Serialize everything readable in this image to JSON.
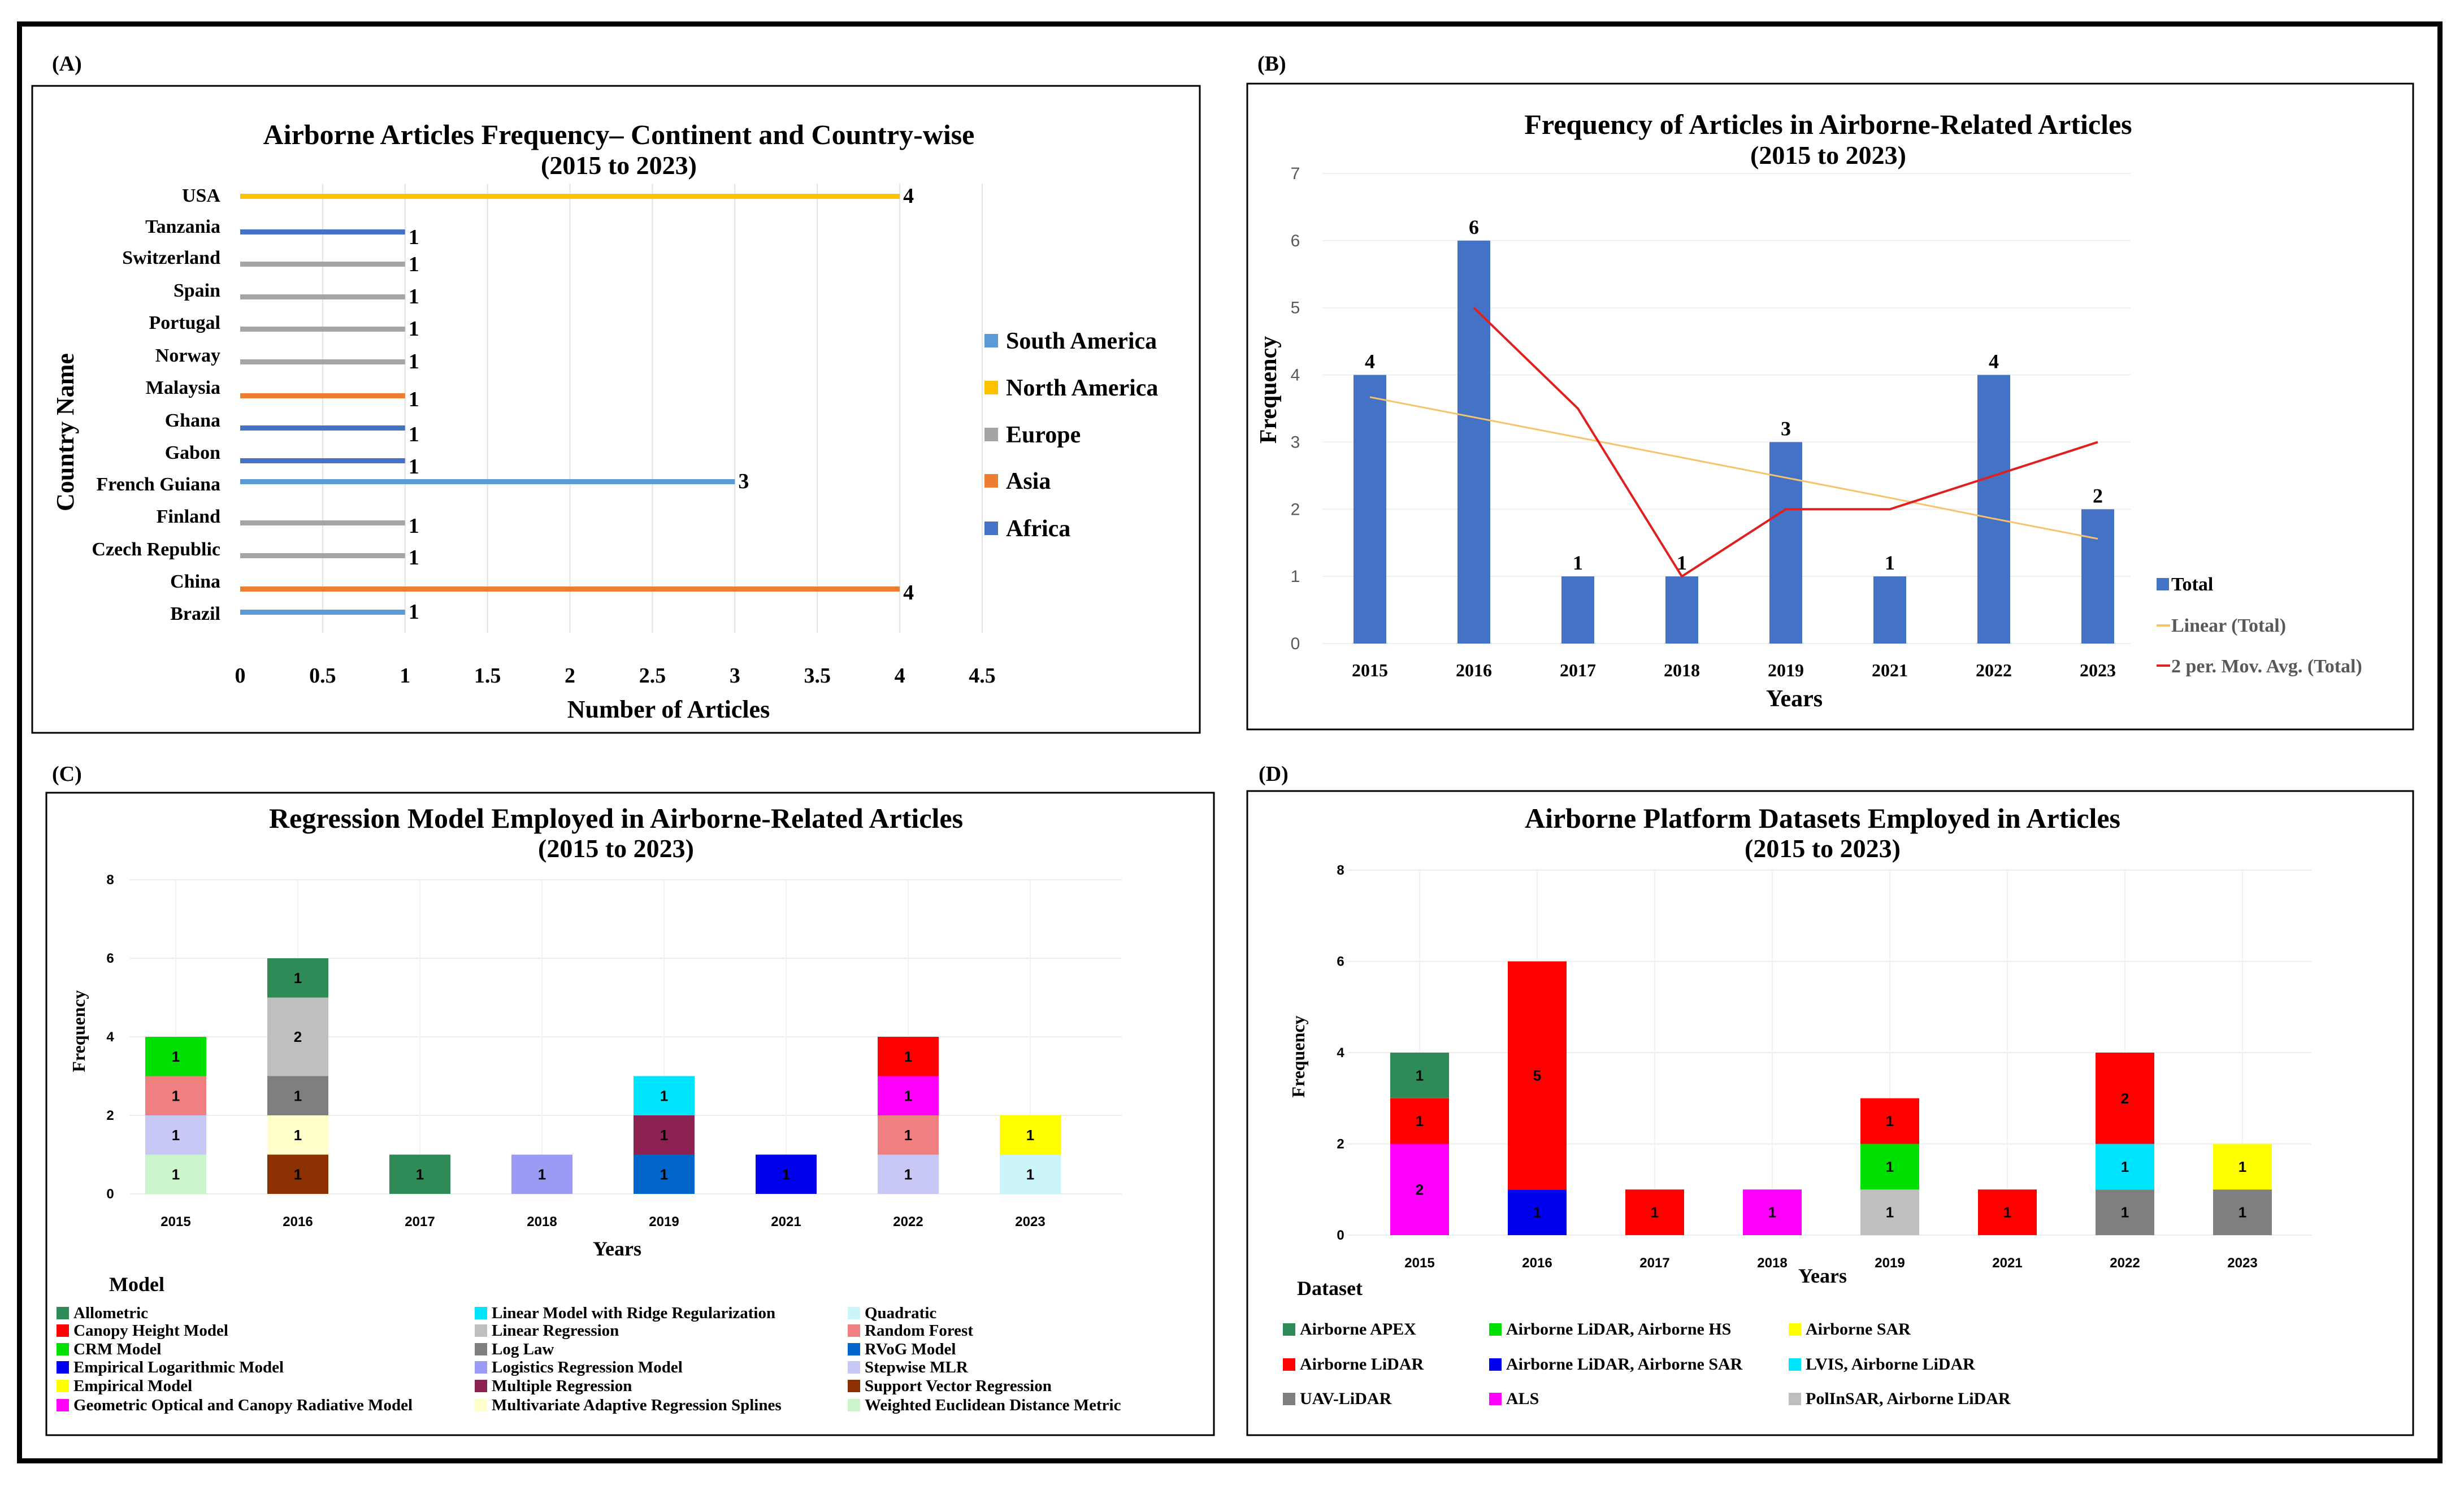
{
  "panels": {
    "A": {
      "label": "(A)",
      "chart_data": {
        "type": "bar",
        "orientation": "horizontal",
        "title": "Airborne Articles Frequency– Continent and  Country-wise",
        "subtitle": "(2015 to 2023)",
        "xlabel": "Number of Articles",
        "ylabel": "Country Name",
        "xlim": [
          0,
          4.5
        ],
        "xticks": [
          "0",
          "0.5",
          "1",
          "1.5",
          "2",
          "2.5",
          "3",
          "3.5",
          "4",
          "4.5"
        ],
        "categories": [
          "USA",
          "Tanzania",
          "Switzerland",
          "Spain",
          "Portugal",
          "Norway",
          "Malaysia",
          "Ghana",
          "Gabon",
          "French Guiana",
          "Finland",
          "Czech Republic",
          "China",
          "Brazil"
        ],
        "values": [
          4,
          1,
          1,
          1,
          1,
          1,
          1,
          1,
          1,
          3,
          1,
          1,
          4,
          1
        ],
        "continent": [
          "North America",
          "Africa",
          "Europe",
          "Europe",
          "Europe",
          "Europe",
          "Asia",
          "Africa",
          "Africa",
          "South America",
          "Europe",
          "Europe",
          "Asia",
          "South America"
        ],
        "legend": [
          {
            "name": "South America",
            "color": "#5b9bd5"
          },
          {
            "name": "North America",
            "color": "#ffc000"
          },
          {
            "name": "Europe",
            "color": "#a5a5a5"
          },
          {
            "name": "Asia",
            "color": "#ed7d31"
          },
          {
            "name": "Africa",
            "color": "#4472c4"
          }
        ],
        "legend_position": "right"
      }
    },
    "B": {
      "label": "(B)",
      "chart_data": {
        "type": "bar",
        "title": "Frequency of Articles in Airborne-Related Articles",
        "subtitle": "(2015 to 2023)",
        "xlabel": "Years",
        "ylabel": "Frequency",
        "ylim": [
          0,
          7
        ],
        "yticks": [
          "0",
          "1",
          "2",
          "3",
          "4",
          "5",
          "6",
          "7"
        ],
        "categories": [
          "2015",
          "2016",
          "2017",
          "2018",
          "2019",
          "2021",
          "2022",
          "2023"
        ],
        "series": [
          {
            "name": "Total",
            "type": "bar",
            "color": "#4472c4",
            "values": [
              4,
              6,
              1,
              1,
              3,
              1,
              4,
              2
            ]
          },
          {
            "name": "Linear (Total)",
            "type": "line",
            "color": "#f5c36b",
            "values": [
              3.67,
              3.37,
              3.07,
              2.77,
              2.47,
              2.17,
              1.86,
              1.56
            ]
          },
          {
            "name": "2 per. Mov. Avg. (Total)",
            "type": "line",
            "color": "#e02020",
            "values": [
              null,
              5,
              3.5,
              1,
              2,
              2,
              2.5,
              3
            ]
          }
        ],
        "data_labels": [
          "4",
          "6",
          "1",
          "1",
          "3",
          "1",
          "4",
          "2"
        ],
        "legend_position": "right"
      }
    },
    "C": {
      "label": "(C)",
      "chart_data": {
        "type": "bar",
        "stacked": true,
        "title": "Regression Model Employed in Airborne-Related Articles",
        "subtitle": "(2015 to 2023)",
        "xlabel": "Years",
        "ylabel": "Frequency",
        "ylim": [
          0,
          8
        ],
        "yticks": [
          "0",
          "2",
          "4",
          "6",
          "8"
        ],
        "categories": [
          "2015",
          "2016",
          "2017",
          "2018",
          "2019",
          "2021",
          "2022",
          "2023"
        ],
        "stacks": [
          [
            {
              "model": "Weighted Euclidean Distance Metric",
              "value": 1
            },
            {
              "model": "Stepwise MLR",
              "value": 1
            },
            {
              "model": "Random Forest",
              "value": 1
            },
            {
              "model": "CRM Model",
              "value": 1
            }
          ],
          [
            {
              "model": "Support Vector Regression",
              "value": 1
            },
            {
              "model": "Multivariate Adaptive Regression Splines",
              "value": 1
            },
            {
              "model": "Log Law",
              "value": 1
            },
            {
              "model": "Linear Regression",
              "value": 2
            },
            {
              "model": "Allometric",
              "value": 1
            }
          ],
          [
            {
              "model": "Allometric",
              "value": 1
            }
          ],
          [
            {
              "model": "Logistics Regression Model",
              "value": 1
            }
          ],
          [
            {
              "model": "RVoG Model",
              "value": 1
            },
            {
              "model": "Multiple Regression",
              "value": 1
            },
            {
              "model": "Linear Model with Ridge Regularization",
              "value": 1
            }
          ],
          [
            {
              "model": "Empirical Logarithmic Model",
              "value": 1
            }
          ],
          [
            {
              "model": "Stepwise MLR",
              "value": 1
            },
            {
              "model": "Random Forest",
              "value": 1
            },
            {
              "model": "Geometric Optical and Canopy Radiative Model",
              "value": 1
            },
            {
              "model": "Canopy Height Model",
              "value": 1
            }
          ],
          [
            {
              "model": "Quadratic",
              "value": 1
            },
            {
              "model": "Empirical Model",
              "value": 1
            }
          ]
        ],
        "legend_title": "Model",
        "legend": [
          {
            "name": "Allometric",
            "color": "#2e8b57"
          },
          {
            "name": "Canopy Height Model",
            "color": "#ff0000"
          },
          {
            "name": "CRM Model",
            "color": "#00e000"
          },
          {
            "name": "Empirical Logarithmic Model",
            "color": "#0000ee"
          },
          {
            "name": "Empirical Model",
            "color": "#ffff00"
          },
          {
            "name": "Geometric Optical and Canopy Radiative Model",
            "color": "#ff00ff"
          },
          {
            "name": "Linear Model with Ridge Regularization",
            "color": "#00e5ff"
          },
          {
            "name": "Linear Regression",
            "color": "#bfbfbf"
          },
          {
            "name": "Log Law",
            "color": "#7f7f7f"
          },
          {
            "name": "Logistics Regression Model",
            "color": "#9b9bf5"
          },
          {
            "name": "Multiple Regression",
            "color": "#8b2252"
          },
          {
            "name": "Multivariate Adaptive Regression Splines",
            "color": "#ffffcc"
          },
          {
            "name": "Quadratic",
            "color": "#ccf5f9"
          },
          {
            "name": "Random Forest",
            "color": "#f08080"
          },
          {
            "name": "RVoG Model",
            "color": "#0066cc"
          },
          {
            "name": "Stepwise MLR",
            "color": "#c8c8f5"
          },
          {
            "name": "Support Vector Regression",
            "color": "#8b3000"
          },
          {
            "name": "Weighted Euclidean Distance Metric",
            "color": "#ccf5cc"
          }
        ],
        "legend_position": "bottom"
      }
    },
    "D": {
      "label": "(D)",
      "chart_data": {
        "type": "bar",
        "stacked": true,
        "title": "Airborne Platform Datasets Employed in Articles",
        "subtitle": "(2015 to 2023)",
        "xlabel": "Years",
        "ylabel": "Frequency",
        "ylim": [
          0,
          8
        ],
        "yticks": [
          "0",
          "2",
          "4",
          "6",
          "8"
        ],
        "categories": [
          "2015",
          "2016",
          "2017",
          "2018",
          "2019",
          "2021",
          "2022",
          "2023"
        ],
        "stacks": [
          [
            {
              "dataset": "ALS",
              "value": 2
            },
            {
              "dataset": "Airborne LiDAR",
              "value": 1
            },
            {
              "dataset": "Airborne APEX",
              "value": 1
            }
          ],
          [
            {
              "dataset": "Airborne LiDAR, Airborne SAR",
              "value": 1
            },
            {
              "dataset": "Airborne LiDAR",
              "value": 5
            }
          ],
          [
            {
              "dataset": "Airborne LiDAR",
              "value": 1
            }
          ],
          [
            {
              "dataset": "ALS",
              "value": 1
            }
          ],
          [
            {
              "dataset": "PolInSAR, Airborne LiDAR",
              "value": 1
            },
            {
              "dataset": "Airborne LiDAR, Airborne HS",
              "value": 1
            },
            {
              "dataset": "Airborne LiDAR",
              "value": 1
            }
          ],
          [
            {
              "dataset": "Airborne LiDAR",
              "value": 1
            }
          ],
          [
            {
              "dataset": "UAV-LiDAR",
              "value": 1
            },
            {
              "dataset": "LVIS, Airborne LiDAR",
              "value": 1
            },
            {
              "dataset": "Airborne LiDAR",
              "value": 2
            }
          ],
          [
            {
              "dataset": "UAV-LiDAR",
              "value": 1
            },
            {
              "dataset": "Airborne SAR",
              "value": 1
            }
          ]
        ],
        "legend_title": "Dataset",
        "legend": [
          {
            "name": "Airborne APEX",
            "color": "#2e8b57"
          },
          {
            "name": "Airborne LiDAR, Airborne HS",
            "color": "#00e000"
          },
          {
            "name": "Airborne SAR",
            "color": "#ffff00"
          },
          {
            "name": "Airborne LiDAR",
            "color": "#ff0000"
          },
          {
            "name": "Airborne LiDAR, Airborne SAR",
            "color": "#0000ee"
          },
          {
            "name": "LVIS, Airborne LiDAR",
            "color": "#00e5ff"
          },
          {
            "name": "UAV-LiDAR",
            "color": "#7f7f7f"
          },
          {
            "name": "ALS",
            "color": "#ff00ff"
          },
          {
            "name": "PolInSAR, Airborne LiDAR",
            "color": "#bfbfbf"
          }
        ],
        "legend_position": "bottom"
      }
    }
  }
}
